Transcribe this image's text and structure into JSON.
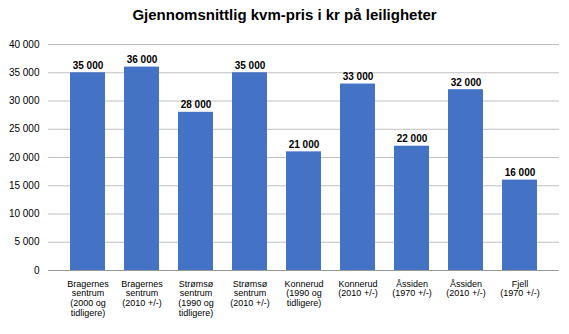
{
  "chart_data": {
    "type": "bar",
    "title": "Gjennomsnittlig kvm-pris i kr på leiligheter",
    "categories": [
      "Bragernes\nsentrum\n(2000 og\ntidligere)",
      "Bragernes\nsentrum\n(2010 +/-)",
      "Strømsø\nsentrum\n(1990 og\ntidligere)",
      "Strømsø\nsentrum\n(2010 +/-)",
      "Konnerud\n(1990 og\ntidligere)",
      "Konnerud\n(2010 +/-)",
      "Åssiden\n(1970 +/-)",
      "Åssiden\n(2010 +/-)",
      "Fjell\n(1970 +/-)"
    ],
    "values": [
      35000,
      36000,
      28000,
      35000,
      21000,
      33000,
      22000,
      32000,
      16000
    ],
    "value_labels": [
      "35 000",
      "36 000",
      "28 000",
      "35 000",
      "21 000",
      "33 000",
      "22 000",
      "32 000",
      "16 000"
    ],
    "data_labels": true,
    "color": "#4472C4",
    "ylim": [
      0,
      40000
    ],
    "yticks": [
      0,
      {
        "value": 5000,
        "label": "5 000"
      },
      {
        "value": 10000,
        "label": "10 000"
      },
      {
        "value": 15000,
        "label": "15 000"
      },
      {
        "value": 20000,
        "label": "20 000"
      },
      {
        "value": 25000,
        "label": "25 000"
      },
      {
        "value": 30000,
        "label": "30 000"
      },
      {
        "value": 35000,
        "label": "35 000"
      },
      {
        "value": 40000,
        "label": "40 000"
      }
    ],
    "grid": true
  }
}
